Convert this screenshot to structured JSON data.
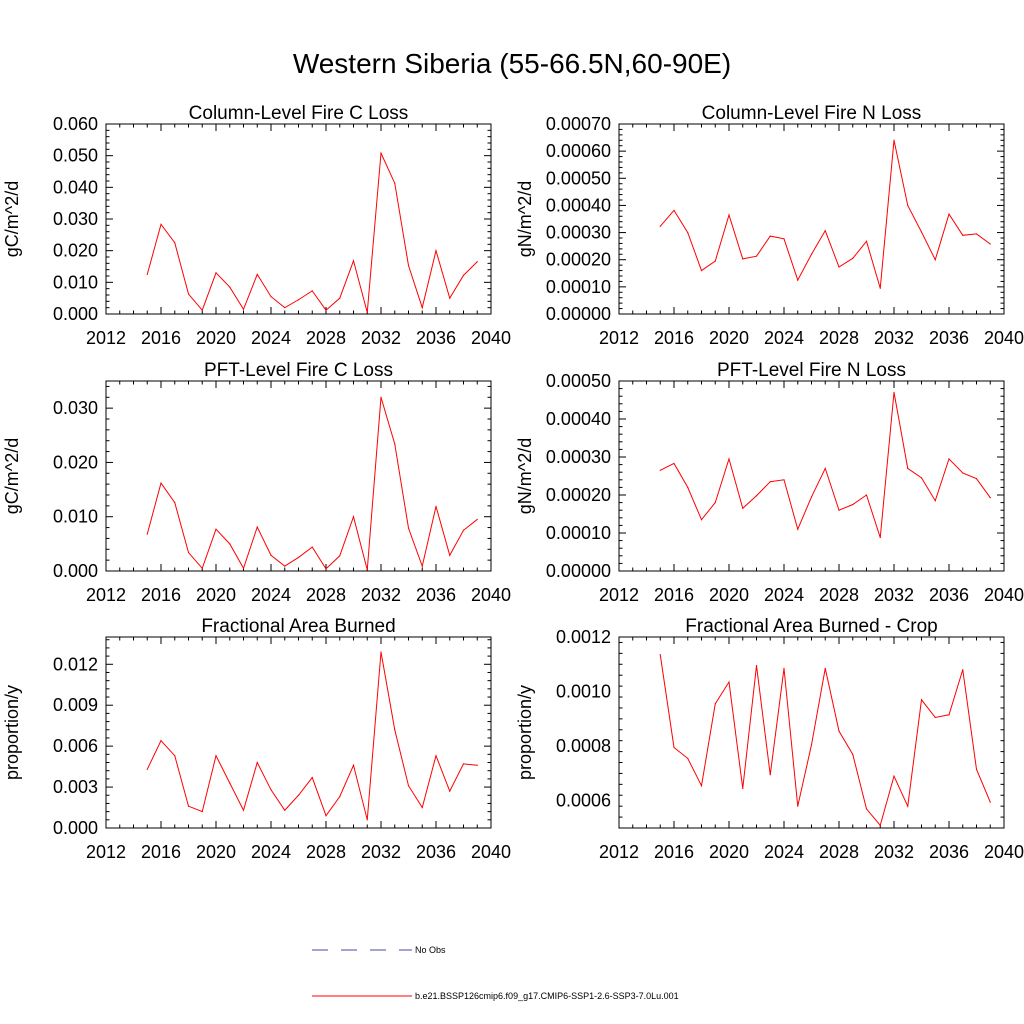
{
  "title": "Western Siberia (55-66.5N,60-90E)",
  "legend": {
    "obs_label": "No Obs",
    "model_label": "b.e21.BSSP126cmip6.f09_g17.CMIP6-SSP1-2.6-SSP3-7.0Lu.001",
    "obs_color": "#4a4aa8",
    "model_color": "#ff0000"
  },
  "chart_data": [
    {
      "type": "line",
      "title": "Column-Level Fire C Loss",
      "ylabel": "gC/m^2/d",
      "xlim": [
        2012,
        2040
      ],
      "ylim": [
        0,
        0.06
      ],
      "xticks": [
        2012,
        2016,
        2020,
        2024,
        2028,
        2032,
        2036,
        2040
      ],
      "yticks": [
        "0.000",
        "0.010",
        "0.020",
        "0.030",
        "0.040",
        "0.050",
        "0.060"
      ],
      "x": [
        2015,
        2016,
        2017,
        2018,
        2019,
        2020,
        2021,
        2022,
        2023,
        2024,
        2025,
        2026,
        2027,
        2028,
        2029,
        2030,
        2031,
        2032,
        2033,
        2034,
        2035,
        2036,
        2037,
        2038,
        2039
      ],
      "series": [
        {
          "color": "#ff0000",
          "values": [
            0.0125,
            0.0283,
            0.0225,
            0.0063,
            0.0012,
            0.013,
            0.0085,
            0.0015,
            0.0125,
            0.0055,
            0.002,
            0.0045,
            0.0073,
            0.0012,
            0.005,
            0.0168,
            0.0005,
            0.0508,
            0.0413,
            0.0153,
            0.002,
            0.02,
            0.005,
            0.0122,
            0.0165
          ]
        }
      ]
    },
    {
      "type": "line",
      "title": "Column-Level Fire N Loss",
      "ylabel": "gN/m^2/d",
      "xlim": [
        2012,
        2040
      ],
      "ylim": [
        0,
        0.0007
      ],
      "xticks": [
        2012,
        2016,
        2020,
        2024,
        2028,
        2032,
        2036,
        2040
      ],
      "yticks": [
        "0.00000",
        "0.00010",
        "0.00020",
        "0.00030",
        "0.00040",
        "0.00050",
        "0.00060",
        "0.00070"
      ],
      "x": [
        2015,
        2016,
        2017,
        2018,
        2019,
        2020,
        2021,
        2022,
        2023,
        2024,
        2025,
        2026,
        2027,
        2028,
        2029,
        2030,
        2031,
        2032,
        2033,
        2034,
        2035,
        2036,
        2037,
        2038,
        2039
      ],
      "series": [
        {
          "color": "#ff0000",
          "values": [
            0.000323,
            0.000382,
            0.0003,
            0.00016,
            0.000195,
            0.000365,
            0.000203,
            0.000213,
            0.000287,
            0.000277,
            0.000125,
            0.00022,
            0.000307,
            0.000173,
            0.000205,
            0.000268,
            9.5e-05,
            0.00064,
            0.0004,
            0.000302,
            0.0002,
            0.000368,
            0.00029,
            0.000295,
            0.000258
          ]
        }
      ]
    },
    {
      "type": "line",
      "title": "PFT-Level Fire C Loss",
      "ylabel": "gC/m^2/d",
      "xlim": [
        2012,
        2040
      ],
      "ylim": [
        0,
        0.035
      ],
      "xticks": [
        2012,
        2016,
        2020,
        2024,
        2028,
        2032,
        2036,
        2040
      ],
      "yticks": [
        "0.000",
        "0.010",
        "0.020",
        "0.030"
      ],
      "x": [
        2015,
        2016,
        2017,
        2018,
        2019,
        2020,
        2021,
        2022,
        2023,
        2024,
        2025,
        2026,
        2027,
        2028,
        2029,
        2030,
        2031,
        2032,
        2033,
        2034,
        2035,
        2036,
        2037,
        2038,
        2039
      ],
      "series": [
        {
          "color": "#ff0000",
          "values": [
            0.0068,
            0.0162,
            0.0126,
            0.0034,
            0.0005,
            0.0077,
            0.005,
            0.0005,
            0.0081,
            0.0029,
            0.0009,
            0.0025,
            0.0044,
            0.0004,
            0.0028,
            0.01,
            0.0002,
            0.032,
            0.0234,
            0.0079,
            0.0009,
            0.0119,
            0.0029,
            0.0075,
            0.0095
          ]
        }
      ]
    },
    {
      "type": "line",
      "title": "PFT-Level Fire N Loss",
      "ylabel": "gN/m^2/d",
      "xlim": [
        2012,
        2040
      ],
      "ylim": [
        0,
        0.0005
      ],
      "xticks": [
        2012,
        2016,
        2020,
        2024,
        2028,
        2032,
        2036,
        2040
      ],
      "yticks": [
        "0.00000",
        "0.00010",
        "0.00020",
        "0.00030",
        "0.00040",
        "0.00050"
      ],
      "x": [
        2015,
        2016,
        2017,
        2018,
        2019,
        2020,
        2021,
        2022,
        2023,
        2024,
        2025,
        2026,
        2027,
        2028,
        2029,
        2030,
        2031,
        2032,
        2033,
        2034,
        2035,
        2036,
        2037,
        2038,
        2039
      ],
      "series": [
        {
          "color": "#ff0000",
          "values": [
            0.000265,
            0.000283,
            0.00022,
            0.000135,
            0.00018,
            0.000295,
            0.000165,
            0.000198,
            0.000235,
            0.00024,
            0.00011,
            0.000195,
            0.00027,
            0.00016,
            0.000175,
            0.0002,
            8.8e-05,
            0.00047,
            0.00027,
            0.000245,
            0.000185,
            0.000295,
            0.000258,
            0.000243,
            0.000193
          ]
        }
      ]
    },
    {
      "type": "line",
      "title": "Fractional Area Burned",
      "ylabel": "proportion/y",
      "xlim": [
        2012,
        2040
      ],
      "ylim": [
        0,
        0.014
      ],
      "xticks": [
        2012,
        2016,
        2020,
        2024,
        2028,
        2032,
        2036,
        2040
      ],
      "yticks": [
        "0.000",
        "0.003",
        "0.006",
        "0.009",
        "0.012"
      ],
      "x": [
        2015,
        2016,
        2017,
        2018,
        2019,
        2020,
        2021,
        2022,
        2023,
        2024,
        2025,
        2026,
        2027,
        2028,
        2029,
        2030,
        2031,
        2032,
        2033,
        2034,
        2035,
        2036,
        2037,
        2038,
        2039
      ],
      "series": [
        {
          "color": "#ff0000",
          "values": [
            0.0043,
            0.0064,
            0.0053,
            0.0016,
            0.0012,
            0.0053,
            0.0033,
            0.0013,
            0.0048,
            0.0028,
            0.0013,
            0.0024,
            0.0037,
            0.0009,
            0.0023,
            0.0046,
            0.0006,
            0.0129,
            0.0072,
            0.0031,
            0.0015,
            0.0053,
            0.0027,
            0.0047,
            0.0046
          ]
        }
      ]
    },
    {
      "type": "line",
      "title": "Fractional Area Burned - Crop",
      "ylabel": "proportion/y",
      "xlim": [
        2012,
        2040
      ],
      "ylim": [
        0.0005,
        0.0012
      ],
      "xticks": [
        2012,
        2016,
        2020,
        2024,
        2028,
        2032,
        2036,
        2040
      ],
      "yticks": [
        "0.0006",
        "0.0008",
        "0.0010",
        "0.0012"
      ],
      "x": [
        2015,
        2016,
        2017,
        2018,
        2019,
        2020,
        2021,
        2022,
        2023,
        2024,
        2025,
        2026,
        2027,
        2028,
        2029,
        2030,
        2031,
        2032,
        2033,
        2034,
        2035,
        2036,
        2037,
        2038,
        2039
      ],
      "series": [
        {
          "color": "#ff0000",
          "values": [
            0.001135,
            0.000795,
            0.000755,
            0.000655,
            0.000955,
            0.001035,
            0.000645,
            0.001095,
            0.000695,
            0.001085,
            0.00058,
            0.000805,
            0.001085,
            0.000855,
            0.00077,
            0.00057,
            0.00051,
            0.00069,
            0.00058,
            0.00097,
            0.000905,
            0.000915,
            0.00108,
            0.000715,
            0.000595
          ]
        }
      ]
    }
  ]
}
